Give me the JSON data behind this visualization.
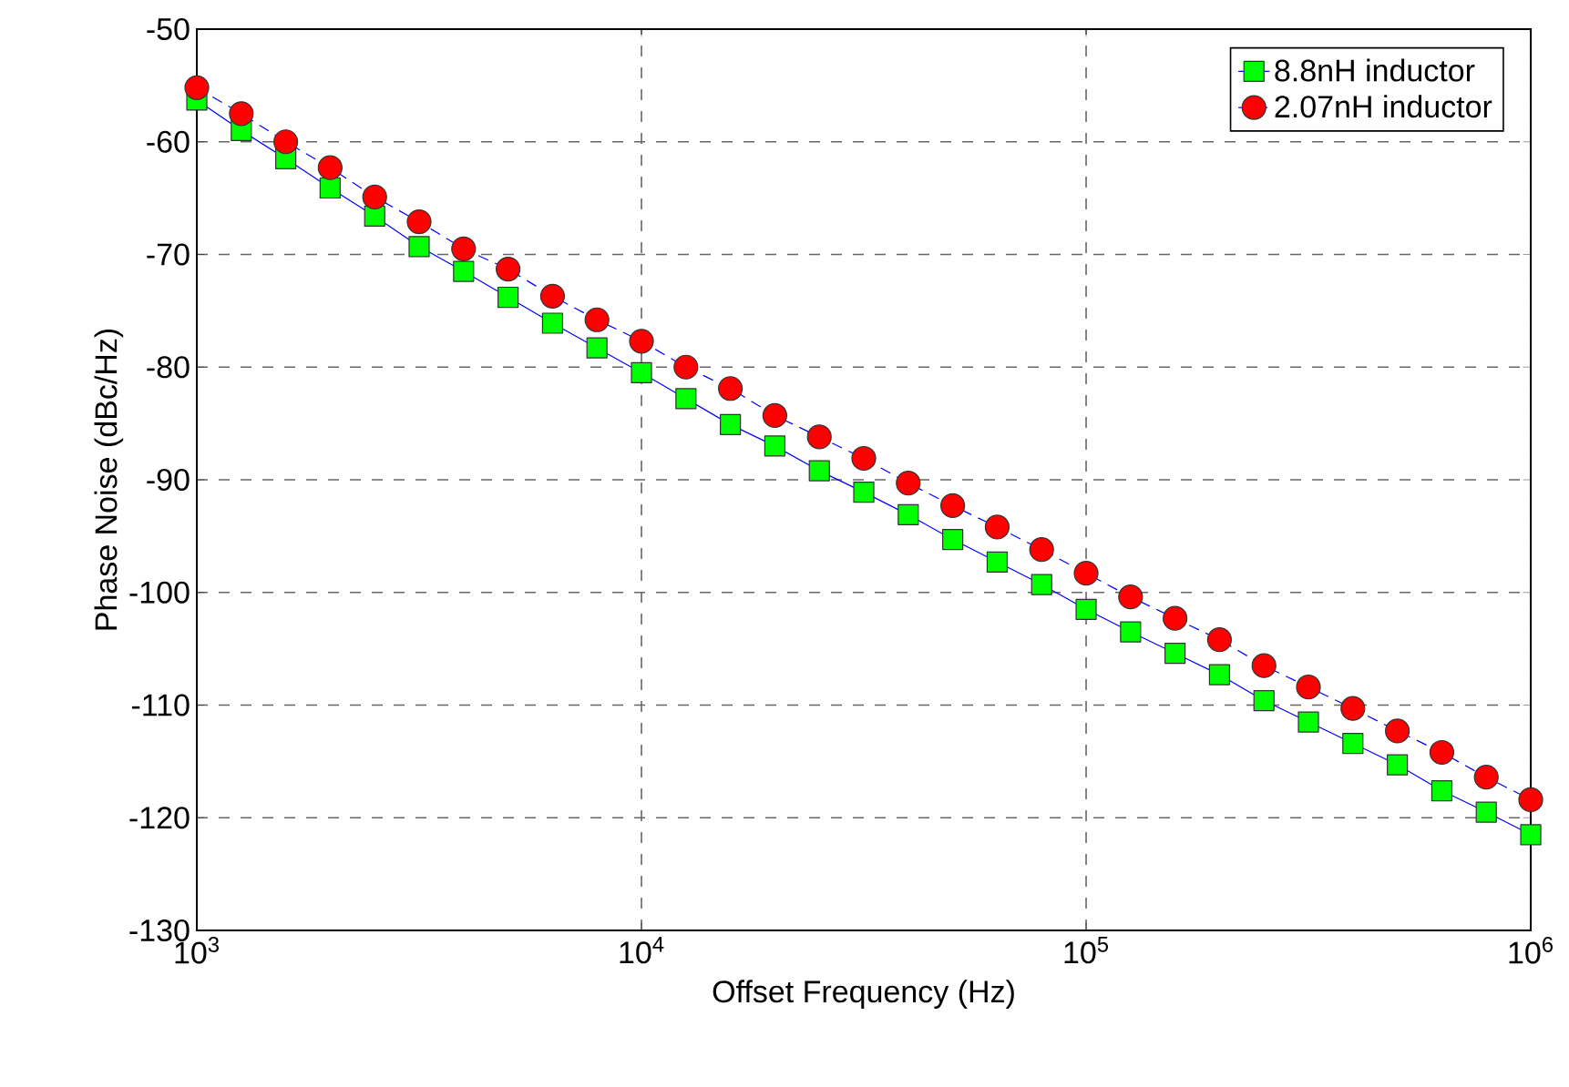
{
  "chart_data": {
    "type": "line",
    "xlabel": "Offset Frequency (Hz)",
    "ylabel": "Phase Noise (dBc/Hz)",
    "log": "x",
    "grid": true,
    "legend": "top right",
    "xlim": [
      1000,
      1000000
    ],
    "ylim": [
      -130,
      -50
    ],
    "xticks": [
      {
        "value": 1000,
        "label": "10$^{3}$"
      },
      {
        "value": 10000,
        "label": "10$^{4}$"
      },
      {
        "value": 100000,
        "label": "10$^{5}$"
      },
      {
        "value": 1000000,
        "label": "10$^{6}$"
      }
    ],
    "yticks": [
      -130,
      -120,
      -110,
      -100,
      -90,
      -80,
      -70,
      -60,
      -50
    ],
    "x": [
      1000,
      1259,
      1585,
      1995,
      2512,
      3162,
      3981,
      5012,
      6310,
      7943,
      10000,
      12589,
      15849,
      19953,
      25119,
      31623,
      39811,
      50119,
      63096,
      79433,
      100000,
      125893,
      158489,
      199526,
      251189,
      316228,
      398107,
      501187,
      630957,
      794328,
      1000000
    ],
    "series": [
      {
        "name": "8.8nH inductor",
        "color": "#00ff00",
        "marker": "square",
        "line_style": "solid",
        "values": [
          -56.3,
          -59.0,
          -61.5,
          -64.1,
          -66.6,
          -69.3,
          -71.5,
          -73.8,
          -76.1,
          -78.3,
          -80.5,
          -82.8,
          -85.1,
          -87.0,
          -89.2,
          -91.1,
          -93.1,
          -95.3,
          -97.3,
          -99.3,
          -101.5,
          -103.5,
          -105.4,
          -107.3,
          -109.6,
          -111.5,
          -113.4,
          -115.3,
          -117.6,
          -119.5,
          -121.5
        ]
      },
      {
        "name": "2.07nH inductor",
        "color": "#ff0000",
        "marker": "circle",
        "line_style": "dashed",
        "values": [
          -55.2,
          -57.5,
          -60.0,
          -62.3,
          -64.9,
          -67.1,
          -69.5,
          -71.3,
          -73.7,
          -75.8,
          -77.7,
          -80.0,
          -81.9,
          -84.3,
          -86.2,
          -88.1,
          -90.3,
          -92.3,
          -94.2,
          -96.2,
          -98.3,
          -100.4,
          -102.3,
          -104.2,
          -106.5,
          -108.4,
          -110.3,
          -112.3,
          -114.2,
          -116.4,
          -118.4
        ]
      }
    ]
  }
}
